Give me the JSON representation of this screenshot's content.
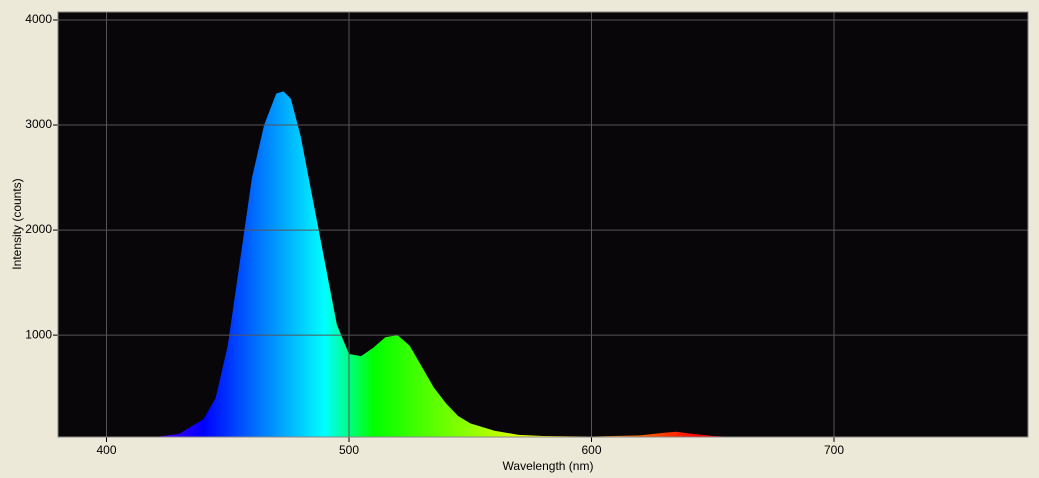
{
  "chart_data": {
    "type": "area",
    "x_label": "Wavelength (nm)",
    "y_label": "Intensity (counts)",
    "x": [
      420,
      430,
      440,
      445,
      450,
      455,
      460,
      465,
      470,
      473,
      476,
      480,
      485,
      490,
      495,
      500,
      505,
      510,
      515,
      520,
      525,
      530,
      535,
      540,
      545,
      550,
      560,
      570,
      580,
      600,
      620,
      630,
      635,
      640,
      650,
      660,
      700
    ],
    "values": [
      30,
      60,
      200,
      400,
      900,
      1700,
      2500,
      3000,
      3300,
      3320,
      3250,
      2900,
      2300,
      1700,
      1100,
      820,
      800,
      880,
      980,
      1000,
      900,
      700,
      500,
      350,
      230,
      160,
      90,
      50,
      40,
      35,
      45,
      70,
      80,
      65,
      40,
      30,
      30
    ],
    "xlim": [
      380,
      780
    ],
    "ylim": [
      30,
      4076
    ],
    "xticks": [
      400,
      500,
      600,
      700
    ],
    "yticks": [
      1000,
      2000,
      3000,
      4000
    ],
    "grid": true,
    "background": "#080608",
    "grid_color": "#555555"
  }
}
